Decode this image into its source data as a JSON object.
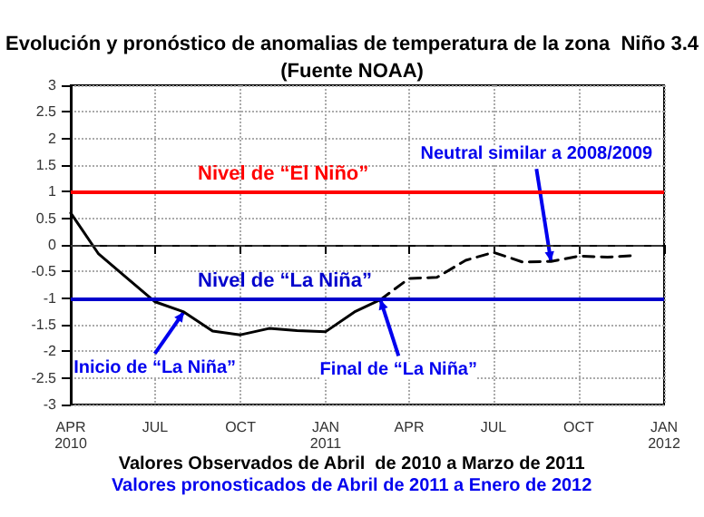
{
  "chart_data": {
    "type": "line",
    "title": "Evolución y pronóstico de anomalias de temperatura de la zona  Niño 3.4",
    "subtitle": "(Fuente NOAA)",
    "series": [
      {
        "color": "#000000",
        "line_style": "solid",
        "x": [
          "2010-04",
          "2010-05",
          "2010-06",
          "2010-07",
          "2010-08",
          "2010-09",
          "2010-10",
          "2010-11",
          "2010-12",
          "2011-01",
          "2011-02",
          "2011-03"
        ],
        "values": [
          0.6,
          -0.17,
          -0.63,
          -1.07,
          -1.26,
          -1.62,
          -1.69,
          -1.57,
          -1.61,
          -1.63,
          -1.26,
          -1.03
        ]
      },
      {
        "color": "#000000",
        "line_style": "dashed",
        "x": [
          "2011-03",
          "2011-04",
          "2011-05",
          "2011-06",
          "2011-07",
          "2011-08",
          "2011-09",
          "2011-10",
          "2011-11",
          "2011-12"
        ],
        "values": [
          -1.03,
          -0.63,
          -0.61,
          -0.29,
          -0.14,
          -0.32,
          -0.31,
          -0.21,
          -0.23,
          -0.2
        ]
      }
    ],
    "xlim": [
      "2010-04",
      "2012-01"
    ],
    "xticks": [
      {
        "value": "2010-04",
        "label": "APR\n2010"
      },
      {
        "value": "2010-07",
        "label": "JUL"
      },
      {
        "value": "2010-10",
        "label": "OCT"
      },
      {
        "value": "2011-01",
        "label": "JAN\n2011"
      },
      {
        "value": "2011-04",
        "label": "APR"
      },
      {
        "value": "2011-07",
        "label": "JUL"
      },
      {
        "value": "2011-10",
        "label": "OCT"
      },
      {
        "value": "2012-01",
        "label": "JAN\n2012"
      }
    ],
    "ylim": [
      -3,
      3
    ],
    "yticks": [
      -3,
      -2.5,
      -2,
      -1.5,
      -1,
      -0.5,
      0,
      0.5,
      1,
      1.5,
      2,
      2.5,
      3
    ],
    "ref_lines": [
      {
        "axis": "y",
        "value": 1,
        "label": "Nivel de “El Niño”",
        "color": "#ff0000"
      },
      {
        "axis": "y",
        "value": -1,
        "label": "Nivel de “La Niña”",
        "color": "#0000cc"
      },
      {
        "axis": "y",
        "value": 0,
        "color": "#333333",
        "line_style": "dashed"
      }
    ],
    "annotations": [
      {
        "text": "Inicio de “La Niña”",
        "x": "2010-08",
        "y": -1.26
      },
      {
        "text": "Final de “La Niña”",
        "x": "2011-03",
        "y": -1.03
      },
      {
        "text": "Neutral similar a 2008/2009",
        "x": "2011-09",
        "y": -0.31
      },
      "Valores Observados de Abril  de 2010 a Marzo de 2011",
      "Valores pronosticados de Abril de 2011 a Enero de 2012"
    ],
    "grid": true,
    "marker": "none"
  }
}
